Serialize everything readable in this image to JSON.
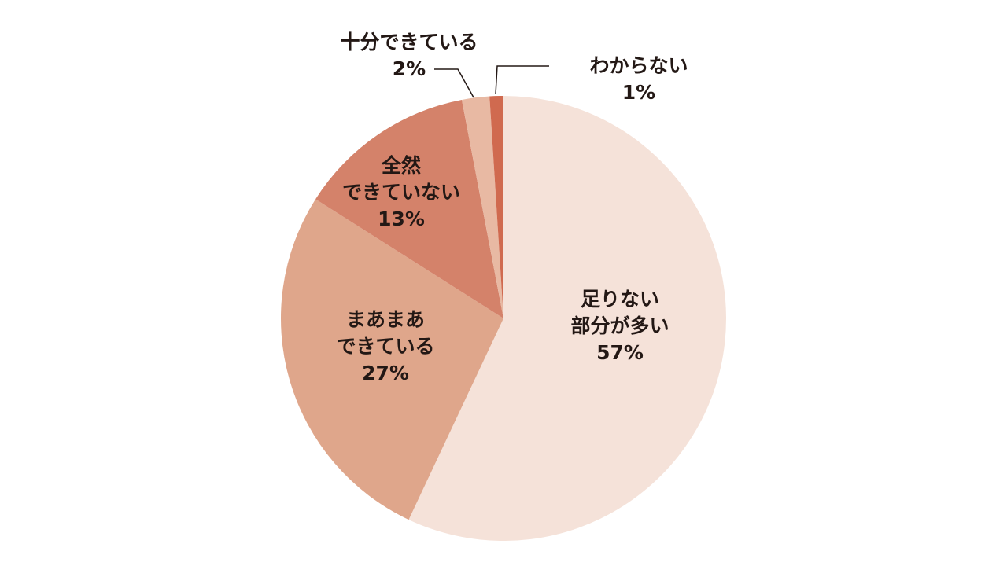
{
  "chart_data": {
    "type": "pie",
    "categories": [
      [
        "足りない",
        "部分が多い"
      ],
      [
        "まあまあ",
        "できている"
      ],
      [
        "全然",
        "できていない"
      ],
      [
        "十分できている"
      ],
      [
        "わからない"
      ]
    ],
    "values": [
      57,
      27,
      13,
      2,
      1
    ],
    "value_labels": [
      "57%",
      "27%",
      "13%",
      "2%",
      "1%"
    ],
    "colors": [
      "#f5e2d9",
      "#dfa68b",
      "#d4826a",
      "#e8b9a3",
      "#d06a4f"
    ]
  }
}
